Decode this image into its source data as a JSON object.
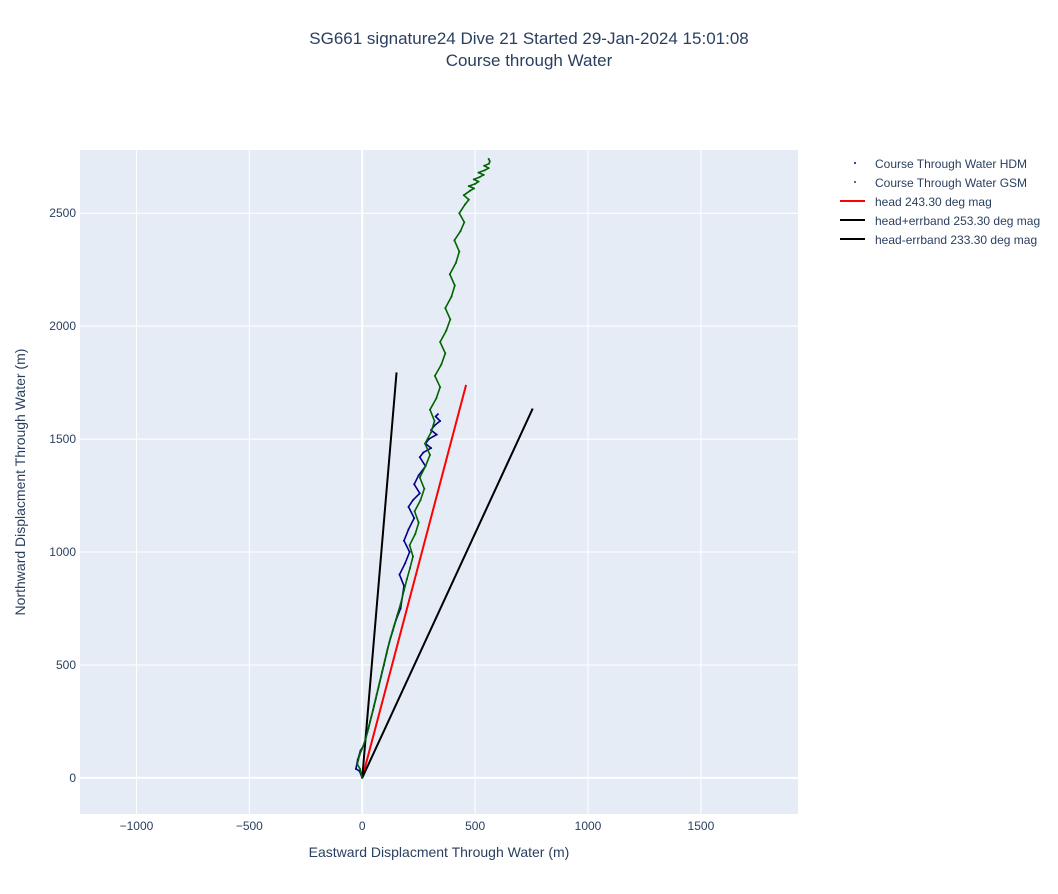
{
  "chart_data": {
    "type": "line",
    "title": "SG661 signature24 Dive 21 Started 29-Jan-2024 15:01:08",
    "subtitle": "Course through Water",
    "xlabel": "Eastward Displacment Through Water (m)",
    "ylabel": "Northward Displacment Through Water (m)",
    "xlim": [
      -1250,
      1930
    ],
    "ylim": [
      -160,
      2780
    ],
    "xticks": [
      -1000,
      -500,
      0,
      500,
      1000,
      1500
    ],
    "xtick_labels": [
      "−1000",
      "−500",
      "0",
      "500",
      "1000",
      "1500"
    ],
    "yticks": [
      0,
      500,
      1000,
      1500,
      2000,
      2500
    ],
    "ytick_labels": [
      "0",
      "500",
      "1000",
      "1500",
      "2000",
      "2500"
    ],
    "grid": true,
    "legend_position": "right",
    "plot_bg": "#e5ecf6",
    "series": [
      {
        "name": "Course Through Water HDM",
        "mode": "markers",
        "color": "#00008b",
        "x": [
          0,
          -12,
          -28,
          -20,
          -8,
          10,
          22,
          35,
          48,
          60,
          72,
          84,
          96,
          108,
          120,
          135,
          150,
          170,
          185,
          165,
          190,
          210,
          185,
          205,
          230,
          205,
          225,
          255,
          230,
          250,
          280,
          255,
          270,
          305,
          280,
          295,
          330,
          305,
          320,
          345,
          325,
          335
        ],
        "y": [
          0,
          30,
          40,
          80,
          120,
          150,
          200,
          250,
          300,
          350,
          400,
          450,
          500,
          550,
          600,
          650,
          700,
          750,
          850,
          900,
          950,
          1000,
          1050,
          1100,
          1150,
          1200,
          1230,
          1260,
          1300,
          1340,
          1380,
          1420,
          1440,
          1460,
          1480,
          1500,
          1520,
          1540,
          1560,
          1580,
          1600,
          1610
        ]
      },
      {
        "name": "Course Through Water GSM",
        "mode": "markers",
        "color": "#006400",
        "x": [
          0,
          -10,
          -22,
          -12,
          0,
          14,
          28,
          40,
          52,
          64,
          76,
          88,
          100,
          112,
          125,
          140,
          155,
          170,
          185,
          198,
          212,
          225,
          210,
          235,
          250,
          232,
          258,
          275,
          255,
          280,
          300,
          278,
          305,
          320,
          300,
          328,
          345,
          322,
          350,
          368,
          345,
          372,
          390,
          368,
          395,
          410,
          388,
          415,
          430,
          408,
          435,
          452,
          430,
          456,
          472,
          450,
          478,
          495,
          472,
          500,
          515,
          494,
          520,
          538,
          515,
          542,
          560,
          540,
          562,
          565,
          560
        ],
        "y": [
          0,
          40,
          60,
          100,
          130,
          170,
          220,
          270,
          320,
          370,
          420,
          470,
          520,
          570,
          620,
          670,
          720,
          770,
          830,
          880,
          930,
          980,
          1030,
          1080,
          1130,
          1180,
          1230,
          1280,
          1330,
          1380,
          1430,
          1480,
          1530,
          1580,
          1630,
          1680,
          1730,
          1780,
          1830,
          1880,
          1930,
          1980,
          2030,
          2080,
          2130,
          2180,
          2230,
          2280,
          2330,
          2380,
          2420,
          2460,
          2500,
          2540,
          2560,
          2580,
          2600,
          2610,
          2620,
          2630,
          2640,
          2650,
          2660,
          2670,
          2680,
          2690,
          2700,
          2710,
          2720,
          2730,
          2740
        ]
      },
      {
        "name": "head 243.30 deg mag",
        "mode": "lines",
        "color": "#ff0000",
        "x": [
          0,
          460
        ],
        "y": [
          0,
          1740
        ]
      },
      {
        "name": "head+errband 253.30 deg mag",
        "mode": "lines",
        "color": "#000000",
        "x": [
          0,
          755
        ],
        "y": [
          0,
          1635
        ]
      },
      {
        "name": "head-errband 233.30 deg mag",
        "mode": "lines",
        "color": "#000000",
        "x": [
          0,
          152
        ],
        "y": [
          0,
          1795
        ]
      }
    ]
  }
}
